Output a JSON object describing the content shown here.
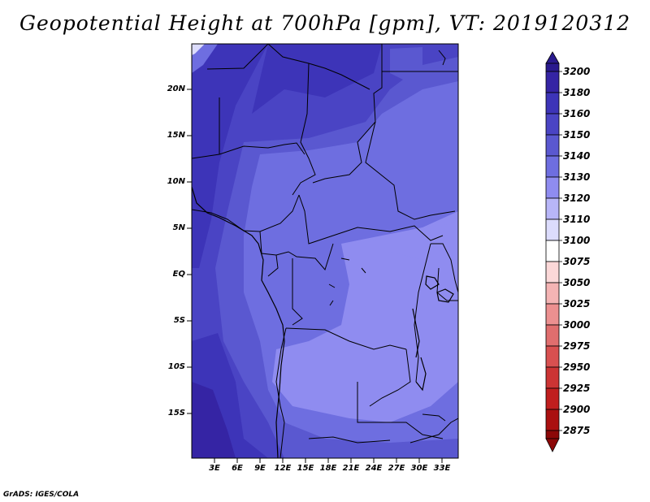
{
  "title": "Geopotential Height at 700hPa [gpm], VT: 2019120312",
  "credit": "GrADS: IGES/COLA",
  "map": {
    "lat_labels": [
      "20N",
      "15N",
      "10N",
      "5N",
      "EQ",
      "5S",
      "10S",
      "15S"
    ],
    "lon_labels": [
      "3E",
      "6E",
      "9E",
      "12E",
      "15E",
      "18E",
      "21E",
      "24E",
      "27E",
      "30E",
      "33E"
    ]
  },
  "colorbar": {
    "labels": [
      "3200",
      "3180",
      "3160",
      "3150",
      "3140",
      "3130",
      "3120",
      "3110",
      "3100",
      "3075",
      "3050",
      "3025",
      "3000",
      "2975",
      "2950",
      "2925",
      "2900",
      "2875"
    ],
    "colors": [
      "#2a1a8e",
      "#3524a4",
      "#3d34b8",
      "#4a44c4",
      "#5a58d0",
      "#6e6ee0",
      "#8f8cf0",
      "#b8b6f8",
      "#dcdcfc",
      "#ffffff",
      "#fbd8d8",
      "#f4b4b4",
      "#ec9090",
      "#e06e6e",
      "#d85050",
      "#cc3434",
      "#c01e1e",
      "#aa1010",
      "#8c0808"
    ]
  }
}
